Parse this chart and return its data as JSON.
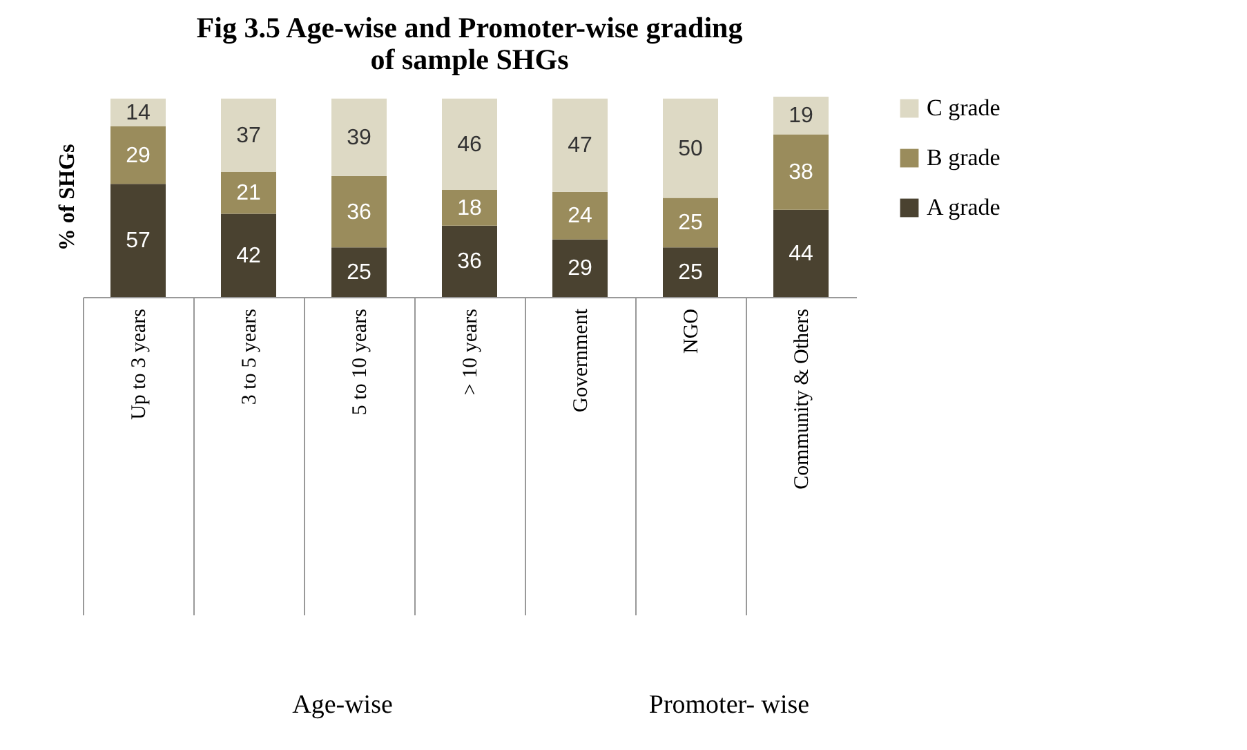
{
  "chart_data": {
    "type": "bar",
    "title": "Fig 3.5 Age-wise and Promoter-wise grading of sample SHGs",
    "ylabel": "% of SHGs",
    "categories": [
      "Up to  3 years",
      "3 to 5 years",
      "5 to 10 years",
      "> 10 years",
      "Government",
      "NGO",
      "Community & Others"
    ],
    "stacked": true,
    "data_labels": true,
    "relative": false,
    "legend": "right",
    "grid": false,
    "series": [
      {
        "name": "A grade",
        "color": "#4a4230",
        "values": [
          57,
          42,
          25,
          36,
          29,
          25,
          44
        ]
      },
      {
        "name": "B grade",
        "color": "#9a8c5c",
        "values": [
          29,
          21,
          36,
          18,
          24,
          25,
          38
        ]
      },
      {
        "name": "C grade",
        "color": "#ddd9c4",
        "values": [
          14,
          37,
          39,
          46,
          47,
          50,
          19
        ]
      }
    ],
    "annotations": [
      "Age-wise",
      "Promoter- wise"
    ]
  }
}
